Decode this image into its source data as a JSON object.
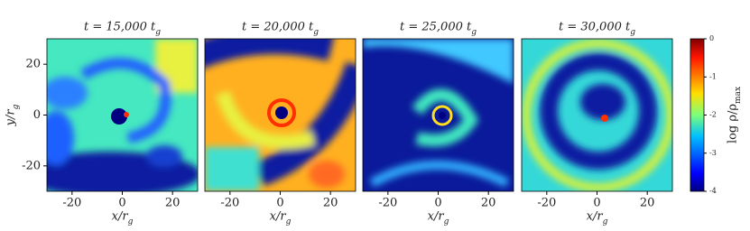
{
  "chart_data": [
    {
      "type": "heatmap",
      "title": "t = 15,000 t_g",
      "xlabel": "x/r_g",
      "ylabel": "y/r_g",
      "xlim": [
        -30,
        30
      ],
      "ylim": [
        -30,
        30
      ],
      "xticks": [
        -20,
        0,
        20
      ],
      "yticks": [
        -20,
        0,
        20
      ]
    },
    {
      "type": "heatmap",
      "title": "t = 20,000 t_g",
      "xlabel": "x/r_g",
      "xlim": [
        -30,
        30
      ],
      "ylim": [
        -30,
        30
      ],
      "xticks": [
        -20,
        0,
        20
      ]
    },
    {
      "type": "heatmap",
      "title": "t = 25,000 t_g",
      "xlabel": "x/r_g",
      "xlim": [
        -30,
        30
      ],
      "ylim": [
        -30,
        30
      ],
      "xticks": [
        -20,
        0,
        20
      ]
    },
    {
      "type": "heatmap",
      "title": "t = 30,000 t_g",
      "xlabel": "x/r_g",
      "xlim": [
        -30,
        30
      ],
      "ylim": [
        -30,
        30
      ],
      "xticks": [
        -20,
        0,
        20
      ]
    }
  ],
  "colorbar": {
    "label": "log ρ/ρ_max",
    "lim": [
      -4,
      0
    ],
    "ticks": [
      0,
      -1,
      -2,
      -3,
      -4
    ]
  }
}
